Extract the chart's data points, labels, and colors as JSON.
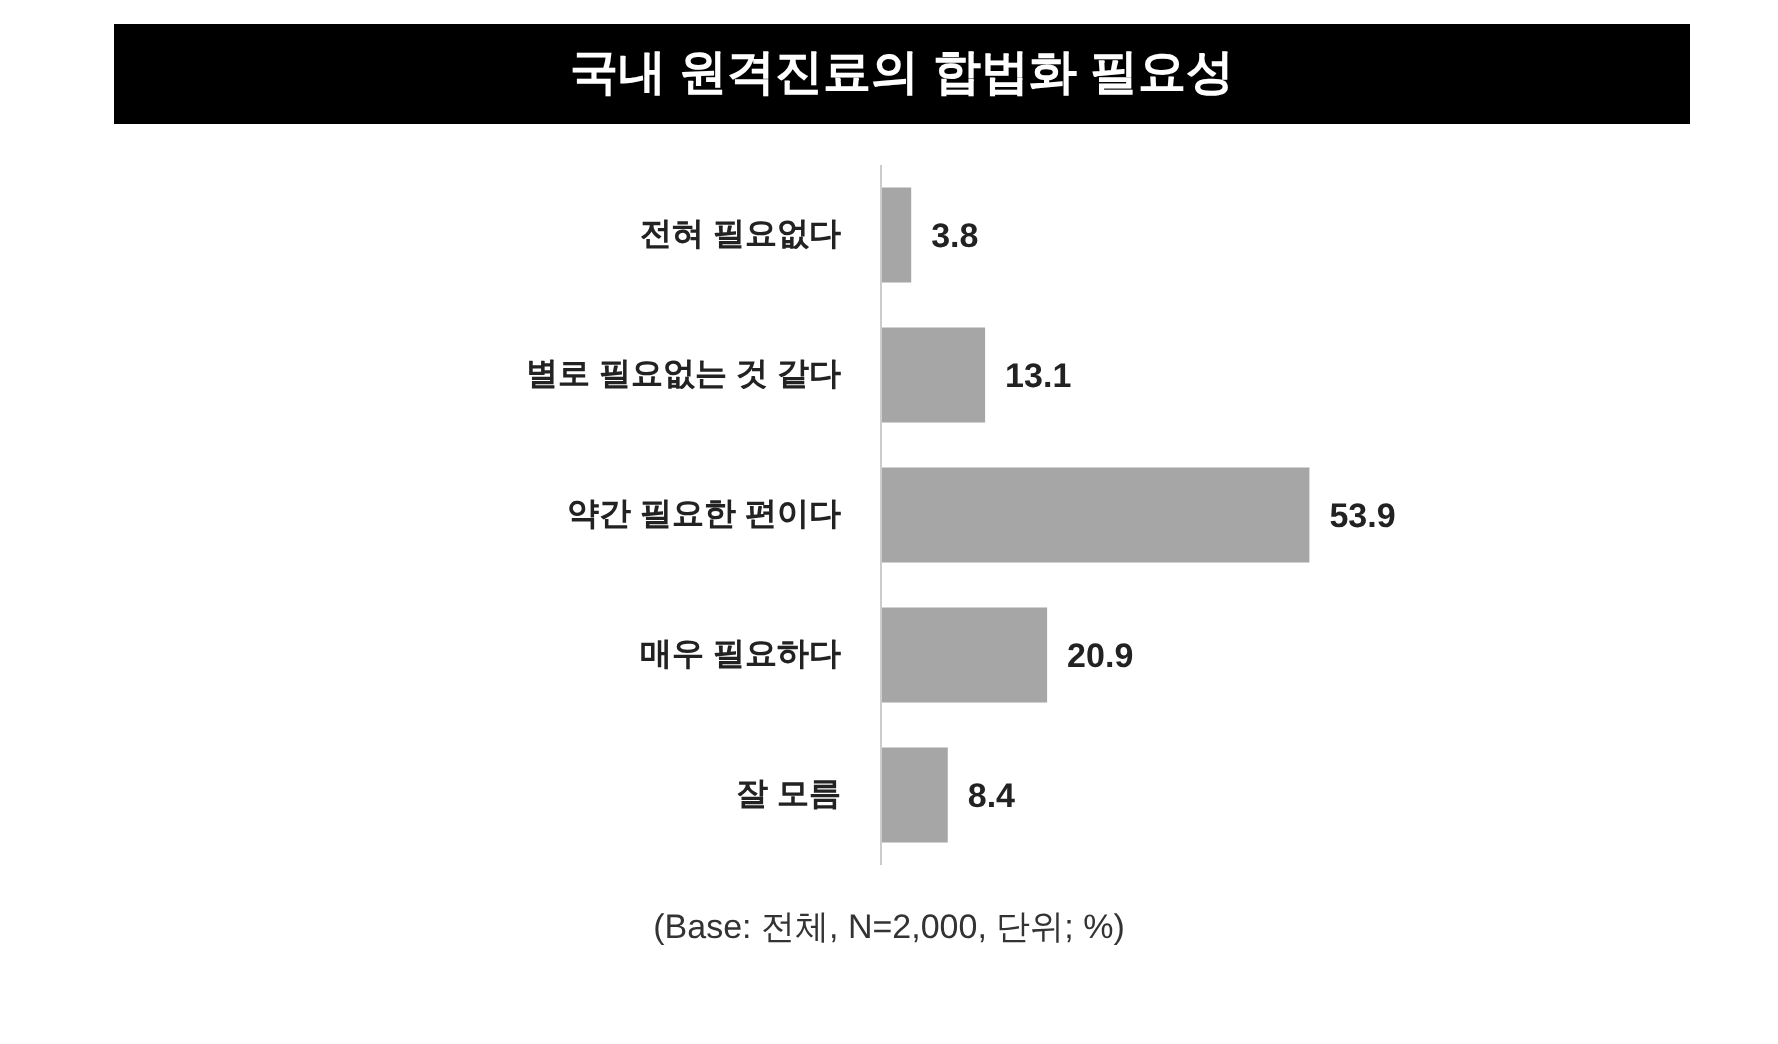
{
  "chart_data": {
    "type": "bar",
    "orientation": "horizontal",
    "title": "국내 원격진료의 합법화 필요성",
    "categories": [
      "전혀 필요없다",
      "별로 필요없는 것 같다",
      "약간 필요한 편이다",
      "매우 필요하다",
      "잘 모름"
    ],
    "values": [
      3.8,
      13.1,
      53.9,
      20.9,
      8.4
    ],
    "color": "#a6a6a6",
    "data_labels": true,
    "annotations": [
      "(Base: 전체, N=2,000, 단위; %)"
    ]
  }
}
